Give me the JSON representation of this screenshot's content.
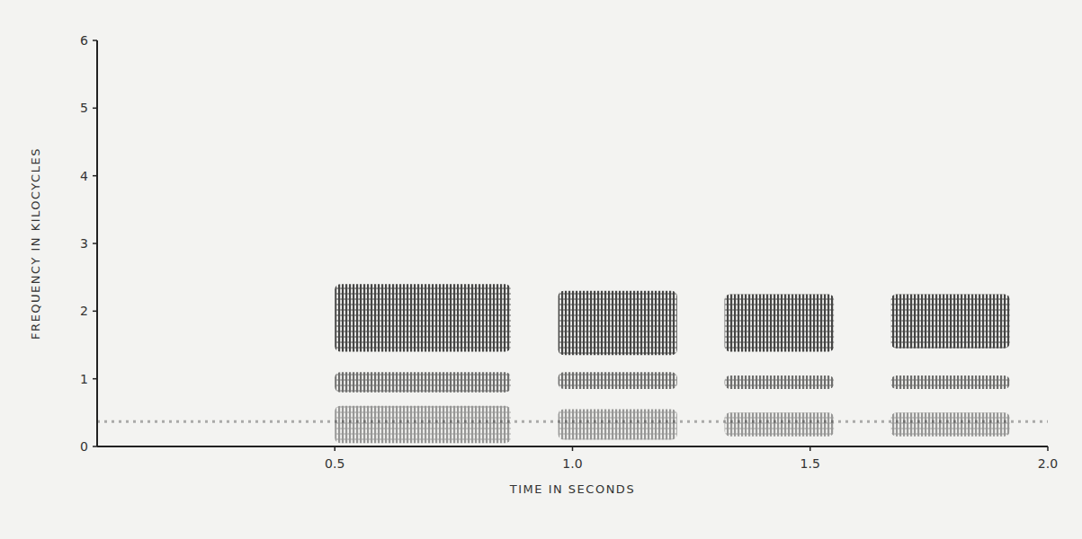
{
  "chart_data": {
    "type": "spectrogram",
    "xlabel": "TIME IN SECONDS",
    "ylabel": "FREQUENCY IN KILOCYCLES",
    "xlim": [
      0,
      2.0
    ],
    "xticks": [
      0.5,
      {
        "value": 1,
        "label": "1.0"
      },
      1.5,
      {
        "value": 2,
        "label": "2.0"
      }
    ],
    "ylim": [
      0,
      6
    ],
    "yticks": [
      0,
      1,
      2,
      3,
      4,
      5,
      6
    ],
    "color": "#262626",
    "hum_frequency": 0.37,
    "bursts": [
      {
        "start": 0.5,
        "end": 0.87,
        "bands": [
          [
            1.4,
            2.4
          ],
          [
            0.8,
            1.1
          ],
          [
            0.05,
            0.6
          ]
        ]
      },
      {
        "start": 0.97,
        "end": 1.22,
        "bands": [
          [
            1.35,
            2.3
          ],
          [
            0.85,
            1.1
          ],
          [
            0.1,
            0.55
          ]
        ]
      },
      {
        "start": 1.32,
        "end": 1.55,
        "bands": [
          [
            1.4,
            2.25
          ],
          [
            0.85,
            1.05
          ],
          [
            0.15,
            0.5
          ]
        ]
      },
      {
        "start": 1.67,
        "end": 1.92,
        "bands": [
          [
            1.45,
            2.25
          ],
          [
            0.85,
            1.05
          ],
          [
            0.15,
            0.5
          ]
        ]
      }
    ]
  }
}
